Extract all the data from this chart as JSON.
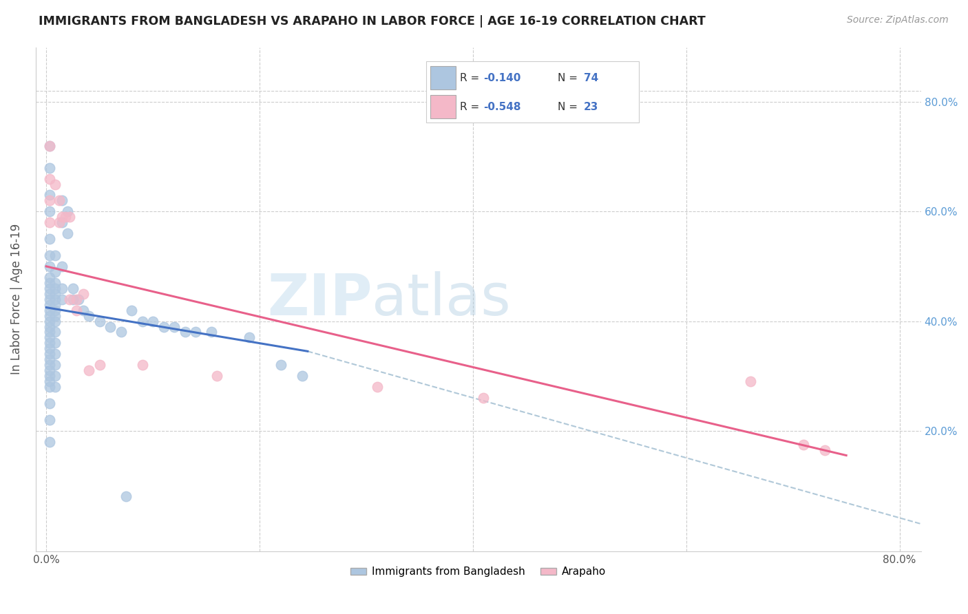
{
  "title": "IMMIGRANTS FROM BANGLADESH VS ARAPAHO IN LABOR FORCE | AGE 16-19 CORRELATION CHART",
  "source": "Source: ZipAtlas.com",
  "ylabel": "In Labor Force | Age 16-19",
  "xlim": [
    -0.01,
    0.82
  ],
  "ylim": [
    -0.02,
    0.9
  ],
  "xtick_labels": [
    "0.0%",
    "",
    "",
    "",
    "80.0%"
  ],
  "xtick_vals": [
    0.0,
    0.2,
    0.4,
    0.6,
    0.8
  ],
  "ytick_labels": [
    "20.0%",
    "40.0%",
    "60.0%",
    "80.0%"
  ],
  "ytick_vals": [
    0.2,
    0.4,
    0.6,
    0.8
  ],
  "watermark_zip": "ZIP",
  "watermark_atlas": "atlas",
  "legend_r1": "R = ",
  "legend_v1": "-0.140",
  "legend_n1_label": "N = ",
  "legend_n1": "74",
  "legend_r2": "R = ",
  "legend_v2": "-0.548",
  "legend_n2_label": "N = ",
  "legend_n2": "23",
  "legend_label1": "Immigrants from Bangladesh",
  "legend_label2": "Arapaho",
  "blue_color": "#adc6e0",
  "pink_color": "#f4b8c8",
  "blue_line_color": "#4472c4",
  "pink_line_color": "#e8608a",
  "dash_color": "#b0c8d8",
  "blue_scatter": [
    [
      0.003,
      0.72
    ],
    [
      0.003,
      0.68
    ],
    [
      0.003,
      0.63
    ],
    [
      0.003,
      0.6
    ],
    [
      0.003,
      0.55
    ],
    [
      0.003,
      0.52
    ],
    [
      0.003,
      0.5
    ],
    [
      0.003,
      0.48
    ],
    [
      0.003,
      0.47
    ],
    [
      0.003,
      0.46
    ],
    [
      0.003,
      0.45
    ],
    [
      0.003,
      0.44
    ],
    [
      0.003,
      0.43
    ],
    [
      0.003,
      0.42
    ],
    [
      0.003,
      0.41
    ],
    [
      0.003,
      0.4
    ],
    [
      0.003,
      0.39
    ],
    [
      0.003,
      0.38
    ],
    [
      0.003,
      0.37
    ],
    [
      0.003,
      0.36
    ],
    [
      0.003,
      0.35
    ],
    [
      0.003,
      0.34
    ],
    [
      0.003,
      0.33
    ],
    [
      0.003,
      0.32
    ],
    [
      0.003,
      0.31
    ],
    [
      0.003,
      0.3
    ],
    [
      0.003,
      0.29
    ],
    [
      0.003,
      0.28
    ],
    [
      0.003,
      0.25
    ],
    [
      0.003,
      0.22
    ],
    [
      0.003,
      0.18
    ],
    [
      0.008,
      0.52
    ],
    [
      0.008,
      0.49
    ],
    [
      0.008,
      0.47
    ],
    [
      0.008,
      0.46
    ],
    [
      0.008,
      0.45
    ],
    [
      0.008,
      0.44
    ],
    [
      0.008,
      0.43
    ],
    [
      0.008,
      0.42
    ],
    [
      0.008,
      0.41
    ],
    [
      0.008,
      0.4
    ],
    [
      0.008,
      0.38
    ],
    [
      0.008,
      0.36
    ],
    [
      0.008,
      0.34
    ],
    [
      0.008,
      0.32
    ],
    [
      0.008,
      0.3
    ],
    [
      0.008,
      0.28
    ],
    [
      0.015,
      0.62
    ],
    [
      0.015,
      0.58
    ],
    [
      0.015,
      0.5
    ],
    [
      0.015,
      0.46
    ],
    [
      0.015,
      0.44
    ],
    [
      0.02,
      0.6
    ],
    [
      0.02,
      0.56
    ],
    [
      0.025,
      0.46
    ],
    [
      0.025,
      0.44
    ],
    [
      0.03,
      0.44
    ],
    [
      0.035,
      0.42
    ],
    [
      0.04,
      0.41
    ],
    [
      0.05,
      0.4
    ],
    [
      0.06,
      0.39
    ],
    [
      0.07,
      0.38
    ],
    [
      0.08,
      0.42
    ],
    [
      0.09,
      0.4
    ],
    [
      0.1,
      0.4
    ],
    [
      0.11,
      0.39
    ],
    [
      0.12,
      0.39
    ],
    [
      0.13,
      0.38
    ],
    [
      0.14,
      0.38
    ],
    [
      0.155,
      0.38
    ],
    [
      0.19,
      0.37
    ],
    [
      0.22,
      0.32
    ],
    [
      0.24,
      0.3
    ],
    [
      0.075,
      0.08
    ]
  ],
  "pink_scatter": [
    [
      0.003,
      0.72
    ],
    [
      0.003,
      0.66
    ],
    [
      0.003,
      0.62
    ],
    [
      0.003,
      0.58
    ],
    [
      0.008,
      0.65
    ],
    [
      0.012,
      0.62
    ],
    [
      0.012,
      0.58
    ],
    [
      0.015,
      0.59
    ],
    [
      0.018,
      0.59
    ],
    [
      0.022,
      0.59
    ],
    [
      0.022,
      0.44
    ],
    [
      0.028,
      0.44
    ],
    [
      0.028,
      0.42
    ],
    [
      0.035,
      0.45
    ],
    [
      0.04,
      0.31
    ],
    [
      0.05,
      0.32
    ],
    [
      0.09,
      0.32
    ],
    [
      0.16,
      0.3
    ],
    [
      0.31,
      0.28
    ],
    [
      0.41,
      0.26
    ],
    [
      0.66,
      0.29
    ],
    [
      0.71,
      0.175
    ],
    [
      0.73,
      0.165
    ]
  ],
  "blue_line_x": [
    0.0,
    0.245
  ],
  "blue_line_y": [
    0.425,
    0.345
  ],
  "dash_line_x": [
    0.245,
    0.82
  ],
  "dash_line_y": [
    0.345,
    0.03
  ],
  "pink_line_x": [
    0.0,
    0.75
  ],
  "pink_line_y": [
    0.5,
    0.155
  ]
}
